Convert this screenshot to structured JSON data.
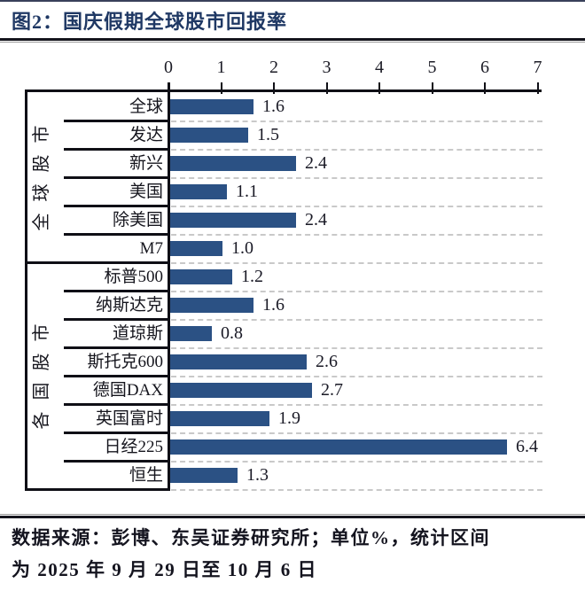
{
  "page": {
    "title": "图2：国庆假期全球股市回报率",
    "footer_line1": "数据来源：彭博、东吴证券研究所；单位%，统计区间",
    "footer_line2": "为 2025 年 9 月 29 日至 10 月 6 日"
  },
  "colors": {
    "title_text": "#1F3864",
    "bar_fill": "#2B5184",
    "axis_line": "#0F0F16",
    "grid_dash": "#C9C9C9",
    "value_text": "#1A1A26",
    "footer_text": "#14141F"
  },
  "chart_data": {
    "type": "bar",
    "orientation": "horizontal",
    "title": "图2：国庆假期全球股市回报率",
    "unit": "%",
    "xlabel": "",
    "ylabel": "",
    "xlim": [
      0,
      7
    ],
    "x_ticks": [
      0,
      1,
      2,
      3,
      4,
      5,
      6,
      7
    ],
    "grid": "dashed horizontal row lines",
    "legend": "none",
    "value_labels": "right of bar, one decimal",
    "groups": [
      {
        "group_label": "全球股市",
        "items": [
          {
            "label": "全球",
            "value": 1.6
          },
          {
            "label": "发达",
            "value": 1.5
          },
          {
            "label": "新兴",
            "value": 2.4
          },
          {
            "label": "美国",
            "value": 1.1
          },
          {
            "label": "除美国",
            "value": 2.4
          },
          {
            "label": "M7",
            "value": 1.0
          }
        ]
      },
      {
        "group_label": "各国股市",
        "items": [
          {
            "label": "标普500",
            "value": 1.2
          },
          {
            "label": "纳斯达克",
            "value": 1.6
          },
          {
            "label": "道琼斯",
            "value": 0.8
          },
          {
            "label": "斯托克600",
            "value": 2.6
          },
          {
            "label": "德国DAX",
            "value": 2.7
          },
          {
            "label": "英国富时",
            "value": 1.9
          },
          {
            "label": "日经225",
            "value": 6.4
          },
          {
            "label": "恒生",
            "value": 1.3
          }
        ]
      }
    ]
  }
}
